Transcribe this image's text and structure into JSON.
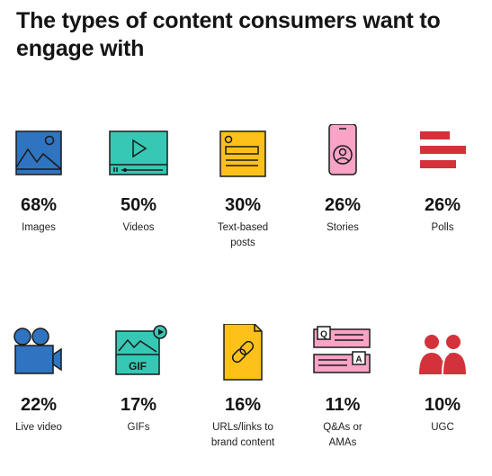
{
  "title": "The types of content consumers want to engage with",
  "colors": {
    "blue": "#2f74c0",
    "teal": "#36c8b4",
    "yellow": "#fdc11a",
    "pink": "#f9a3c6",
    "red": "#d3323a",
    "outline": "#1a1a1a"
  },
  "items": [
    {
      "percent": "68%",
      "label": "Images",
      "icon": "image-icon"
    },
    {
      "percent": "50%",
      "label": "Videos",
      "icon": "video-player-icon"
    },
    {
      "percent": "30%",
      "label": "Text-based posts",
      "icon": "text-post-icon"
    },
    {
      "percent": "26%",
      "label": "Stories",
      "icon": "phone-story-icon"
    },
    {
      "percent": "26%",
      "label": "Polls",
      "icon": "poll-bars-icon"
    },
    {
      "percent": "22%",
      "label": "Live video",
      "icon": "video-camera-icon"
    },
    {
      "percent": "17%",
      "label": "GIFs",
      "icon": "gif-icon"
    },
    {
      "percent": "16%",
      "label": "URLs/links to brand content",
      "icon": "link-document-icon"
    },
    {
      "percent": "11%",
      "label": "Q&As or AMAs",
      "icon": "qa-cards-icon"
    },
    {
      "percent": "10%",
      "label": "UGC",
      "icon": "users-icon"
    }
  ]
}
